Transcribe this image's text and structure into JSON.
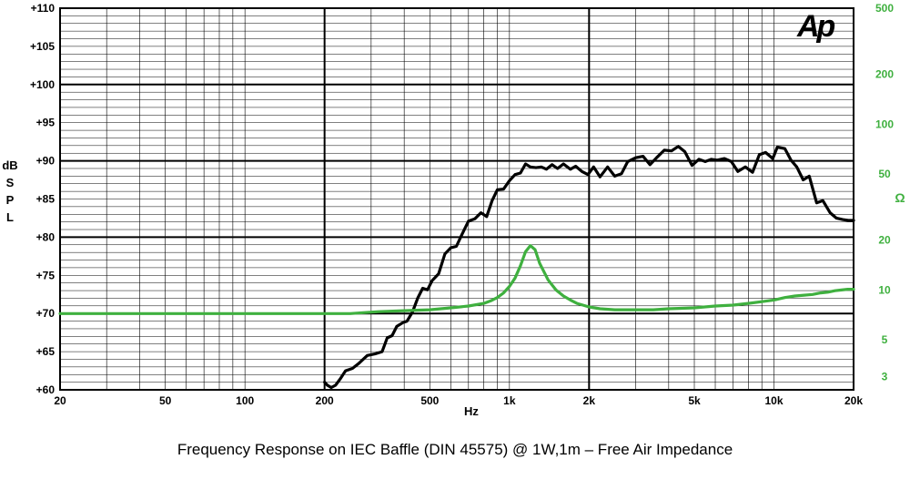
{
  "caption": "Frequency Response on IEC Baffle (DIN 45575)  @ 1W,1m – Free  Air Impedance",
  "logo": "Ap",
  "colors": {
    "spl": "#000000",
    "impedance": "#3fb03f",
    "grid": "#000000"
  },
  "chart_data": {
    "type": "line",
    "title": "",
    "xlabel": "Hz",
    "ylabel": "dB SPL",
    "y2label": "Ω",
    "xscale": "log",
    "xlim": [
      20,
      20000
    ],
    "ylim": [
      60,
      110
    ],
    "y2scale": "log",
    "y2lim": [
      2.5,
      500
    ],
    "grid": true,
    "x_tick_labels": [
      {
        "v": 20,
        "t": "20"
      },
      {
        "v": 50,
        "t": "50"
      },
      {
        "v": 100,
        "t": "100"
      },
      {
        "v": 200,
        "t": "200"
      },
      {
        "v": 500,
        "t": "500"
      },
      {
        "v": 1000,
        "t": "1k"
      },
      {
        "v": 2000,
        "t": "2k"
      },
      {
        "v": 5000,
        "t": "5k"
      },
      {
        "v": 10000,
        "t": "10k"
      },
      {
        "v": 20000,
        "t": "20k"
      }
    ],
    "y_tick_labels": [
      {
        "v": 60,
        "t": "+60"
      },
      {
        "v": 65,
        "t": "+65"
      },
      {
        "v": 70,
        "t": "+70"
      },
      {
        "v": 75,
        "t": "+75"
      },
      {
        "v": 80,
        "t": "+80"
      },
      {
        "v": 85,
        "t": "+85"
      },
      {
        "v": 90,
        "t": "+90"
      },
      {
        "v": 95,
        "t": "+95"
      },
      {
        "v": 100,
        "t": "+100"
      },
      {
        "v": 105,
        "t": "+105"
      },
      {
        "v": 110,
        "t": "+110"
      }
    ],
    "y2_tick_labels": [
      {
        "v": 3,
        "t": "3"
      },
      {
        "v": 5,
        "t": "5"
      },
      {
        "v": 10,
        "t": "10"
      },
      {
        "v": 20,
        "t": "20"
      },
      {
        "v": 50,
        "t": "50"
      },
      {
        "v": 100,
        "t": "100"
      },
      {
        "v": 200,
        "t": "200"
      },
      {
        "v": 500,
        "t": "500"
      }
    ],
    "series": [
      {
        "axis": "left",
        "x": [
          200,
          205,
          212,
          220,
          230,
          240,
          255,
          270,
          290,
          310,
          330,
          345,
          360,
          375,
          395,
          410,
          430,
          450,
          470,
          490,
          510,
          540,
          570,
          600,
          630,
          660,
          700,
          740,
          780,
          820,
          860,
          900,
          950,
          1000,
          1050,
          1100,
          1150,
          1200,
          1260,
          1320,
          1380,
          1450,
          1520,
          1600,
          1700,
          1780,
          1880,
          1980,
          2080,
          2200,
          2350,
          2500,
          2650,
          2800,
          3000,
          3200,
          3400,
          3600,
          3850,
          4100,
          4350,
          4600,
          4900,
          5200,
          5500,
          5800,
          6100,
          6500,
          6900,
          7300,
          7800,
          8300,
          8800,
          9300,
          9900,
          10300,
          11000,
          11600,
          12200,
          12900,
          13600,
          14500,
          15300,
          16300,
          17200,
          18200,
          19100,
          20000
        ],
        "values": [
          61,
          60.6,
          60.3,
          60.6,
          61.5,
          62.5,
          62.8,
          63.5,
          64.5,
          64.7,
          65,
          66.8,
          67.1,
          68.3,
          68.8,
          69,
          70.2,
          72,
          73.3,
          73.1,
          74.3,
          75.2,
          77.8,
          78.6,
          78.8,
          80.3,
          82.1,
          82.4,
          83.2,
          82.7,
          84.8,
          86.2,
          86.3,
          87.4,
          88.2,
          88.4,
          89.6,
          89.2,
          89.1,
          89.2,
          88.9,
          89.5,
          89,
          89.6,
          88.9,
          89.3,
          88.6,
          88.2,
          89.2,
          87.9,
          89.2,
          88,
          88.3,
          89.9,
          90.4,
          90.6,
          89.5,
          90.4,
          91.4,
          91.3,
          91.9,
          91.2,
          89.4,
          90.2,
          89.9,
          90.2,
          90.1,
          90.3,
          89.9,
          88.6,
          89.2,
          88.5,
          90.8,
          91.1,
          90.3,
          91.8,
          91.6,
          90.1,
          89.2,
          87.5,
          88,
          84.5,
          84.8,
          83.2,
          82.5,
          82.3,
          82.2,
          82.2
        ],
        "color": "#000000"
      },
      {
        "axis": "right",
        "x": [
          20,
          100,
          200,
          250,
          280,
          320,
          400,
          500,
          600,
          700,
          800,
          850,
          900,
          950,
          1000,
          1050,
          1100,
          1150,
          1200,
          1250,
          1300,
          1400,
          1500,
          1600,
          1700,
          1800,
          2000,
          2200,
          2500,
          3000,
          3500,
          4000,
          5000,
          6000,
          7000,
          8000,
          9000,
          10000,
          11000,
          12000,
          13000,
          14000,
          15000,
          16000,
          17000,
          18000,
          19000,
          20000
        ],
        "values": [
          7.2,
          7.2,
          7.2,
          7.2,
          7.3,
          7.4,
          7.5,
          7.6,
          7.8,
          8.0,
          8.3,
          8.6,
          9.0,
          9.6,
          10.5,
          11.8,
          14.0,
          17.0,
          18.5,
          17.5,
          14.5,
          11.5,
          10.0,
          9.2,
          8.7,
          8.3,
          7.9,
          7.7,
          7.6,
          7.6,
          7.6,
          7.7,
          7.8,
          8.0,
          8.1,
          8.3,
          8.5,
          8.7,
          9.0,
          9.2,
          9.3,
          9.4,
          9.6,
          9.7,
          9.9,
          10.0,
          10.1,
          10.1
        ],
        "color": "#3fb03f"
      }
    ]
  }
}
